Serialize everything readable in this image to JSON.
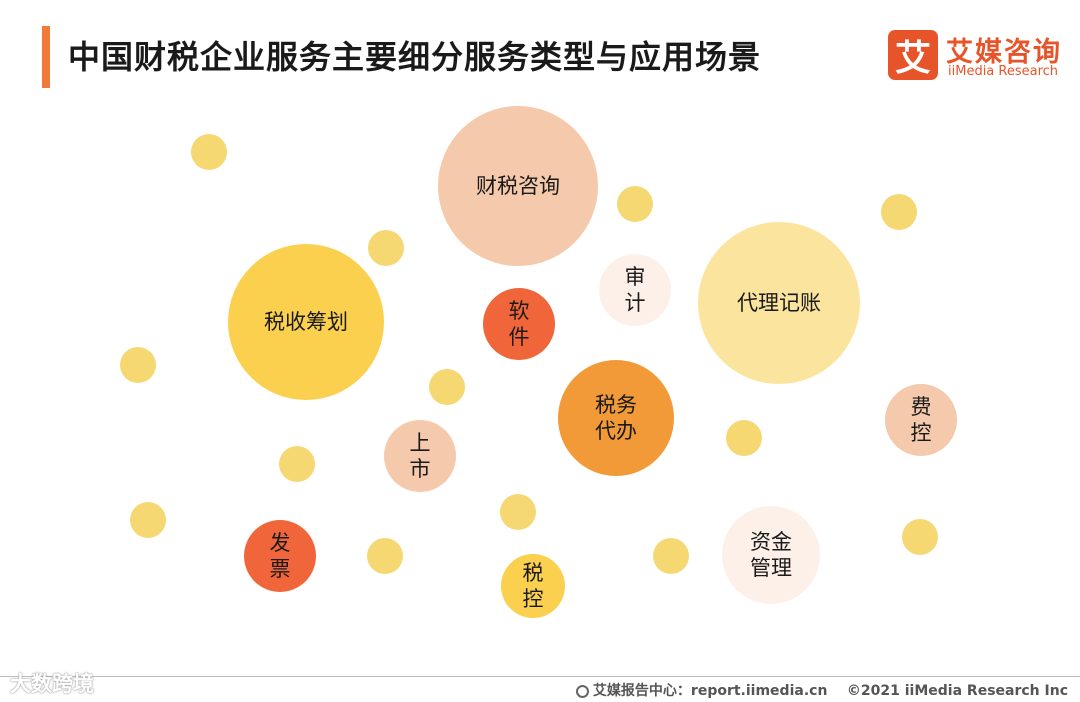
{
  "title": "中国财税企业服务主要细分服务类型与应用场景",
  "logo": {
    "mark": "艾",
    "name_cn": "艾媒咨询",
    "name_en": "iiMedia Research"
  },
  "bubbles": [
    {
      "label": "财税咨询",
      "color": "#f5c9ab"
    },
    {
      "label": "税收筹划",
      "color": "#fbd04f"
    },
    {
      "label": "代理记账",
      "color": "#fbe49e"
    },
    {
      "label": "审计",
      "color": "#fdf0e8"
    },
    {
      "label": "软件",
      "color": "#f0663a"
    },
    {
      "label": "税务代办",
      "color": "#f29a38"
    },
    {
      "label": "上市",
      "color": "#f5c9ab"
    },
    {
      "label": "费控",
      "color": "#f5c9ab"
    },
    {
      "label": "发票",
      "color": "#f0663a"
    },
    {
      "label": "税控",
      "color": "#fbd04f"
    },
    {
      "label": "资金管理",
      "color": "#fdf0e8"
    }
  ],
  "footer": {
    "source": "艾媒报告中心：report.iimedia.cn",
    "copyright": "©2021  iiMedia Research  Inc"
  },
  "watermark": "大数跨境"
}
